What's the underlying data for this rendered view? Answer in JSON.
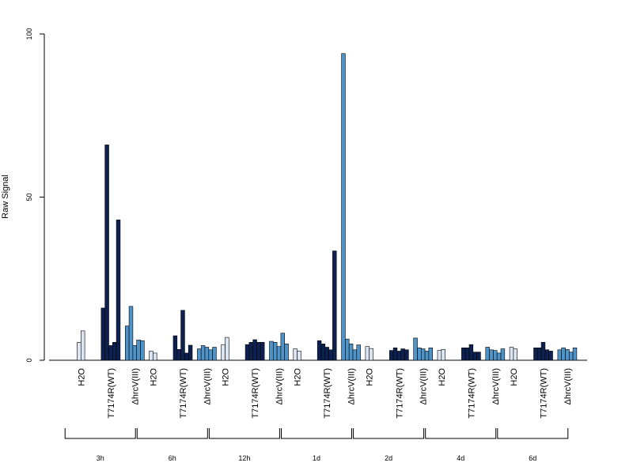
{
  "chart_data": {
    "type": "bar",
    "ylabel": "Raw Signal",
    "ylim": [
      0,
      100
    ],
    "yticks": [
      0,
      50,
      100
    ],
    "grid": false,
    "legend": "none",
    "colors": {
      "H2O": "#dce6f2",
      "T7174R(WT)": "#0d2150",
      "ΔhrcV(III)": "#4f94c8"
    },
    "groups": [
      {
        "time": "3h",
        "conditions": [
          {
            "name": "H2O",
            "values": [
              5.5,
              9
            ]
          },
          {
            "name": "T7174R(WT)",
            "values": [
              16,
              66,
              4.5,
              5.5,
              43
            ]
          },
          {
            "name": "ΔhrcV(III)",
            "values": [
              10.5,
              16.5,
              4.5,
              6.2,
              6
            ]
          }
        ]
      },
      {
        "time": "6h",
        "conditions": [
          {
            "name": "H2O",
            "values": [
              2.8,
              2.2
            ]
          },
          {
            "name": "T7174R(WT)",
            "values": [
              7.5,
              3.3,
              15.3,
              2.2,
              4.6
            ]
          },
          {
            "name": "ΔhrcV(III)",
            "values": [
              3.5,
              4.5,
              4,
              3.2,
              4
            ]
          }
        ]
      },
      {
        "time": "12h",
        "conditions": [
          {
            "name": "H2O",
            "values": [
              4.8,
              7
            ]
          },
          {
            "name": "T7174R(WT)",
            "values": [
              4.8,
              5.5,
              6.3,
              5.5,
              5.5
            ]
          },
          {
            "name": "ΔhrcV(III)",
            "values": [
              5.8,
              5.5,
              4.2,
              8.3,
              5
            ]
          }
        ]
      },
      {
        "time": "1d",
        "conditions": [
          {
            "name": "H2O",
            "values": [
              3.5,
              2.8
            ]
          },
          {
            "name": "T7174R(WT)",
            "values": [
              6,
              5,
              4,
              3.2,
              33.5
            ]
          },
          {
            "name": "ΔhrcV(III)",
            "values": [
              94,
              6.5,
              5,
              3.2,
              4.7
            ]
          }
        ]
      },
      {
        "time": "2d",
        "conditions": [
          {
            "name": "H2O",
            "values": [
              4.2,
              3.6
            ]
          },
          {
            "name": "T7174R(WT)",
            "values": [
              3,
              3.8,
              2.8,
              3.5,
              3.2
            ]
          },
          {
            "name": "ΔhrcV(III)",
            "values": [
              6.8,
              3.8,
              3.5,
              2.8,
              3.8
            ]
          }
        ]
      },
      {
        "time": "4d",
        "conditions": [
          {
            "name": "H2O",
            "values": [
              3,
              3.3
            ]
          },
          {
            "name": "T7174R(WT)",
            "values": [
              3.8,
              3.8,
              4.8,
              2.5,
              2.5
            ]
          },
          {
            "name": "ΔhrcV(III)",
            "values": [
              4,
              3.2,
              3,
              2.2,
              3.5
            ]
          }
        ]
      },
      {
        "time": "6d",
        "conditions": [
          {
            "name": "H2O",
            "values": [
              4,
              3.5
            ]
          },
          {
            "name": "T7174R(WT)",
            "values": [
              3.8,
              3.8,
              5.5,
              3.2,
              2.8
            ]
          },
          {
            "name": "ΔhrcV(III)",
            "values": [
              3.2,
              3.8,
              3.3,
              2.5,
              3.8
            ]
          }
        ]
      }
    ]
  }
}
